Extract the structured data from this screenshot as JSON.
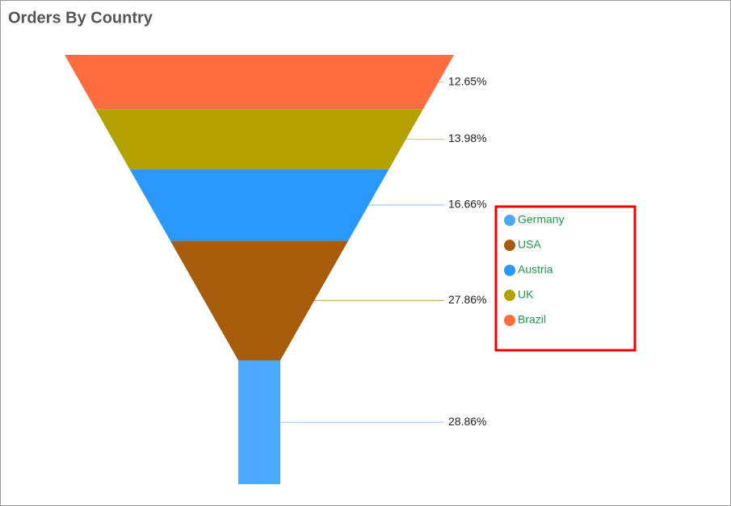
{
  "chart_data": {
    "type": "funnel",
    "title": "Orders By Country",
    "categories": [
      "Germany",
      "USA",
      "Austria",
      "UK",
      "Brazil"
    ],
    "values": [
      28.86,
      27.86,
      16.66,
      13.98,
      12.65
    ],
    "value_labels": [
      "28.86%",
      "27.86%",
      "16.66%",
      "13.98%",
      "12.65%"
    ],
    "colors": [
      "#4da8ff",
      "#a65c0a",
      "#2b98ff",
      "#b3a100",
      "#ff6c40"
    ],
    "legend": "right"
  }
}
